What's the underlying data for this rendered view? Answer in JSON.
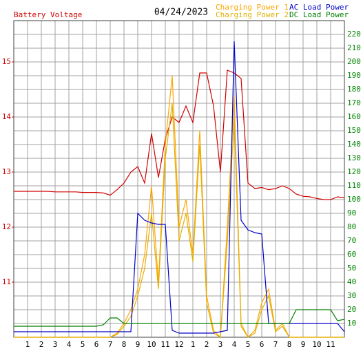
{
  "chart_data": {
    "type": "line",
    "title": "04/24/2023",
    "x": [
      0,
      0.5,
      1,
      1.5,
      2,
      2.5,
      3,
      3.5,
      4,
      4.5,
      5,
      5.5,
      6,
      6.5,
      7,
      7.5,
      8,
      8.5,
      9,
      9.5,
      10,
      10.5,
      11,
      11.5,
      12,
      12.5,
      13,
      13.5,
      14,
      14.5,
      15,
      15.5,
      16,
      16.5,
      17,
      17.5,
      18,
      18.5,
      19,
      19.5,
      20,
      20.5,
      21,
      21.5,
      22,
      22.5,
      23,
      23.5,
      24
    ],
    "xlim": [
      0,
      24
    ],
    "xticks": [
      1,
      2,
      3,
      4,
      5,
      6,
      7,
      8,
      9,
      10,
      11,
      12,
      {
        "value": 13,
        "label": "1"
      },
      {
        "value": 14,
        "label": "2"
      },
      {
        "value": 15,
        "label": "3"
      },
      {
        "value": 16,
        "label": "4"
      },
      {
        "value": 17,
        "label": "5"
      },
      {
        "value": 18,
        "label": "6"
      },
      {
        "value": 19,
        "label": "7"
      },
      {
        "value": 20,
        "label": "8"
      },
      {
        "value": 21,
        "label": "9"
      },
      {
        "value": 22,
        "label": "10"
      },
      {
        "value": 23,
        "label": "11"
      }
    ],
    "ylim": [
      10,
      15.75
    ],
    "yticks": [
      11,
      12,
      13,
      14,
      15
    ],
    "ycolor": "#d00000",
    "y2lim": [
      0,
      230
    ],
    "y2ticks": [
      10,
      20,
      30,
      40,
      50,
      60,
      70,
      80,
      90,
      100,
      110,
      120,
      130,
      140,
      150,
      160,
      170,
      180,
      190,
      200,
      210,
      220
    ],
    "y2color": "#008000",
    "grid": true,
    "series": [
      {
        "name": "Battery Voltage",
        "color": "#d00000",
        "values": [
          12.65,
          12.65,
          12.65,
          12.65,
          12.65,
          12.65,
          12.64,
          12.64,
          12.64,
          12.64,
          12.63,
          12.63,
          12.63,
          12.62,
          12.58,
          12.68,
          12.8,
          13.0,
          13.1,
          12.8,
          13.7,
          12.9,
          13.6,
          14.0,
          13.9,
          14.2,
          13.9,
          14.8,
          14.8,
          14.2,
          13.0,
          14.85,
          14.8,
          14.7,
          12.8,
          12.7,
          12.72,
          12.68,
          12.7,
          12.75,
          12.7,
          12.6,
          12.56,
          12.55,
          12.52,
          12.5,
          12.5,
          12.55,
          12.53
        ]
      },
      {
        "name": "Charging Power 1",
        "color": "#ffa500",
        "axis": "y2",
        "values": [
          0,
          0,
          0,
          0,
          0,
          0,
          0,
          0,
          0,
          0,
          0,
          0,
          0,
          0,
          0,
          3,
          10,
          20,
          35,
          60,
          110,
          40,
          140,
          190,
          80,
          100,
          60,
          150,
          30,
          5,
          0,
          80,
          175,
          10,
          0,
          5,
          25,
          35,
          5,
          10,
          0,
          0,
          0,
          0,
          0,
          0,
          0,
          0,
          0
        ]
      },
      {
        "name": "Charging Power 2",
        "color": "#e0b000",
        "axis": "y2",
        "values": [
          0,
          0,
          0,
          0,
          0,
          0,
          0,
          0,
          0,
          0,
          0,
          0,
          0,
          0,
          0,
          2,
          8,
          15,
          30,
          50,
          90,
          35,
          130,
          170,
          70,
          90,
          55,
          140,
          25,
          3,
          0,
          70,
          160,
          8,
          0,
          3,
          20,
          30,
          4,
          8,
          0,
          0,
          0,
          0,
          0,
          0,
          0,
          0,
          0
        ]
      },
      {
        "name": "AC Load Power",
        "color": "#0000cc",
        "axis": "y2",
        "values": [
          4,
          4,
          4,
          4,
          4,
          4,
          4,
          4,
          4,
          4,
          4,
          4,
          4,
          4,
          4,
          4,
          4,
          4,
          90,
          85,
          83,
          82,
          82,
          5,
          3,
          3,
          3,
          3,
          3,
          3,
          4,
          5,
          215,
          85,
          78,
          76,
          75,
          10,
          10,
          10,
          10,
          10,
          10,
          10,
          10,
          10,
          10,
          10,
          4
        ]
      },
      {
        "name": "DC Load Power",
        "color": "#008000",
        "axis": "y2",
        "values": [
          8,
          8,
          8,
          8,
          8,
          8,
          8,
          8,
          8,
          8,
          8,
          8,
          8,
          9,
          14,
          14,
          10,
          10,
          10,
          10,
          10,
          10,
          10,
          10,
          10,
          10,
          10,
          10,
          10,
          10,
          10,
          10,
          10,
          10,
          10,
          10,
          10,
          10,
          10,
          10,
          10,
          20,
          20,
          20,
          20,
          20,
          20,
          12,
          13
        ]
      }
    ]
  }
}
